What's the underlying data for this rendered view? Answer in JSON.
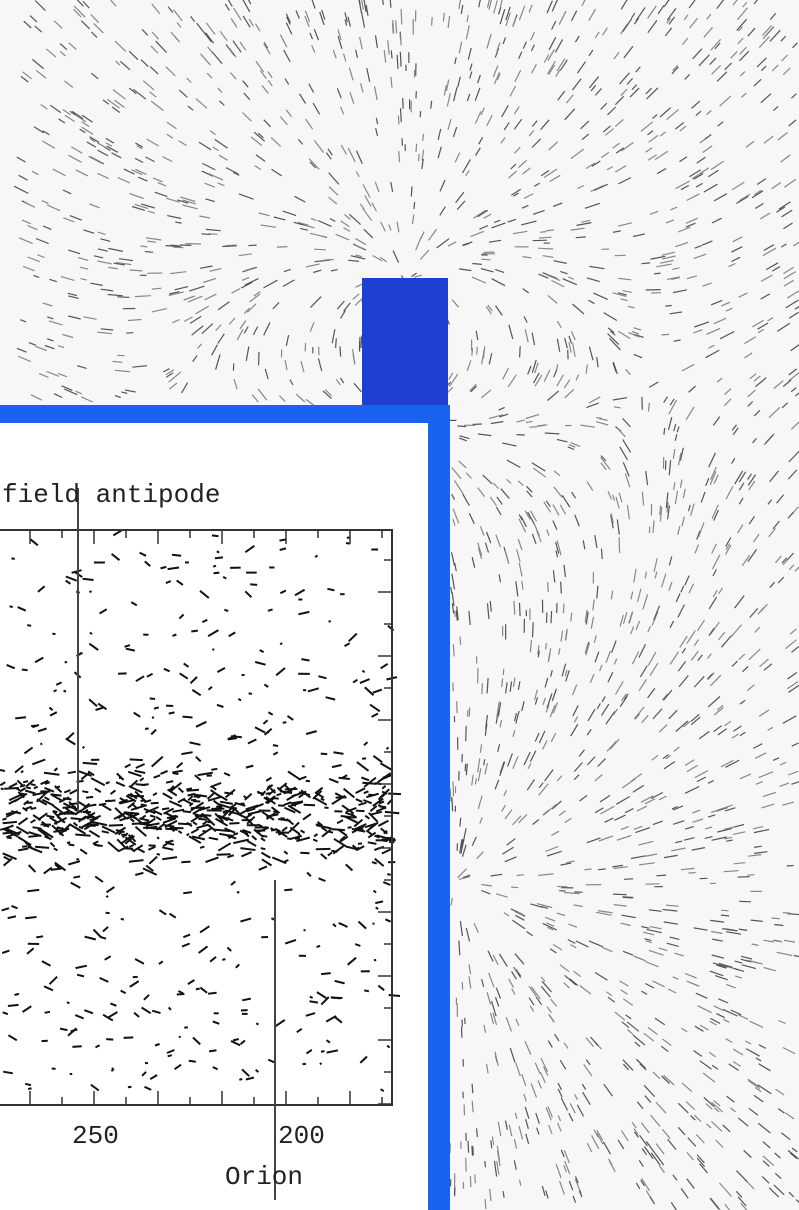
{
  "inset": {
    "title": "field antipode",
    "x_tick_labels": [
      "250",
      "200"
    ],
    "annotation": "Orion"
  }
}
